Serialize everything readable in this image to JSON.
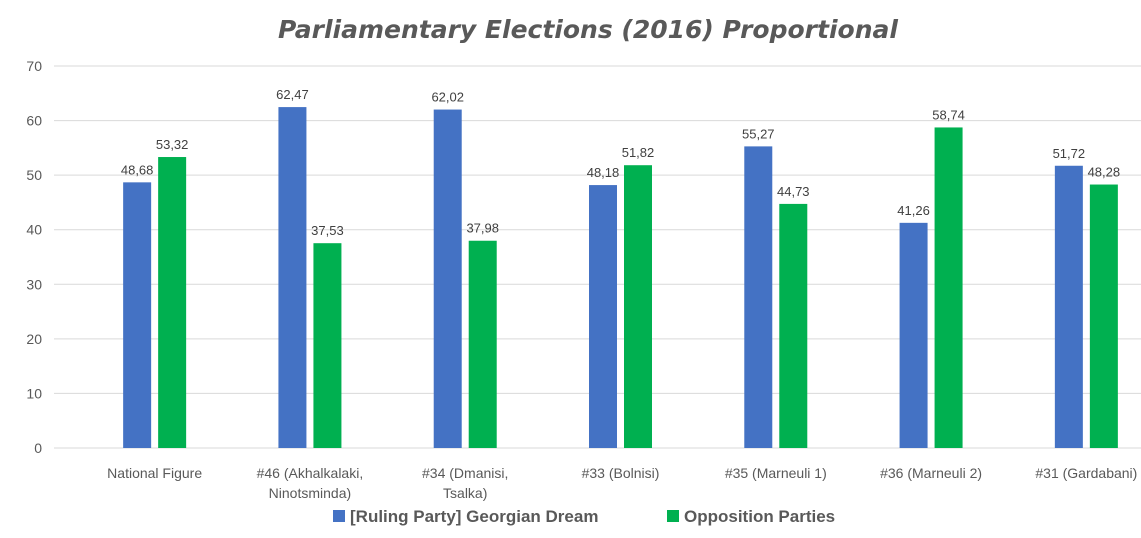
{
  "chart_data": {
    "type": "bar",
    "title": "Parliamentary Elections (2016) Proportional",
    "xlabel": "",
    "ylabel": "",
    "ylim": [
      0,
      70
    ],
    "yticks": [
      0,
      10,
      20,
      30,
      40,
      50,
      60,
      70
    ],
    "grid": true,
    "legend_position": "bottom",
    "decimal_separator": ",",
    "categories": [
      [
        "National Figure"
      ],
      [
        "#46 (Akhalkalaki,",
        "Ninotsminda)"
      ],
      [
        "#34 (Dmanisi,",
        "Tsalka)"
      ],
      [
        "#33 (Bolnisi)"
      ],
      [
        "#35 (Marneuli 1)"
      ],
      [
        "#36 (Marneuli 2)"
      ],
      [
        "#31 (Gardabani)"
      ]
    ],
    "series": [
      {
        "name": "[Ruling Party] Georgian Dream",
        "color": "#4472c4",
        "values": [
          48.68,
          62.47,
          62.02,
          48.18,
          55.27,
          41.26,
          51.72
        ],
        "labels": [
          "48,68",
          "62,47",
          "62,02",
          "48,18",
          "55,27",
          "41,26",
          "51,72"
        ]
      },
      {
        "name": "Opposition Parties",
        "color": "#00b050",
        "values": [
          53.32,
          37.53,
          37.98,
          51.82,
          44.73,
          58.74,
          48.28
        ],
        "labels": [
          "53,32",
          "37,53",
          "37,98",
          "51,82",
          "44,73",
          "58,74",
          "48,28"
        ]
      }
    ]
  }
}
